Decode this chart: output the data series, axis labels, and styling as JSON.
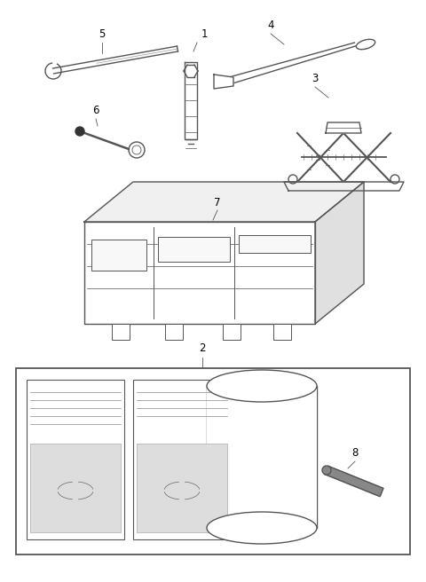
{
  "bg_color": "#ffffff",
  "line_color": "#555555",
  "label_color": "#000000",
  "fig_width": 4.8,
  "fig_height": 6.56,
  "dpi": 100,
  "label_fontsize": 8.5
}
